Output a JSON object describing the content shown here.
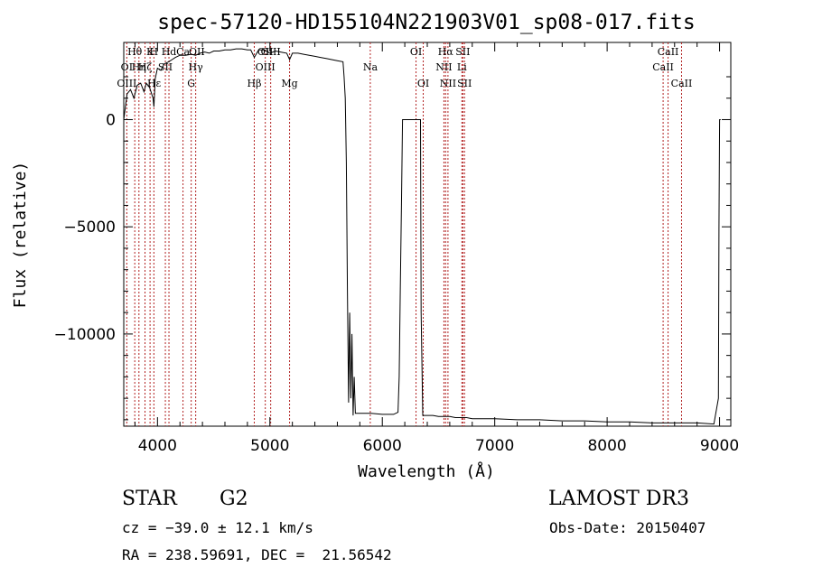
{
  "chart_data": {
    "type": "line",
    "title": "spec-57120-HD155104N221903V01_sp08-017.fits",
    "xlabel": "Wavelength (Å)",
    "ylabel": "Flux (relative)",
    "xlim": [
      3700,
      9100
    ],
    "ylim": [
      -14300,
      3600
    ],
    "x_ticks": [
      4000,
      5000,
      6000,
      7000,
      8000,
      9000
    ],
    "x_tick_labels": [
      "4000",
      "5000",
      "6000",
      "7000",
      "8000",
      "9000"
    ],
    "y_ticks": [
      0,
      -5000,
      -10000
    ],
    "y_tick_labels": [
      "0",
      "−5000",
      "−10000"
    ],
    "grid": false,
    "legend": "none",
    "line_color": "#000000",
    "marker_color": "#b22222",
    "series": [
      {
        "x": [
          3700,
          3710,
          3730,
          3760,
          3790,
          3820,
          3850,
          3880,
          3900,
          3930,
          3960,
          3968,
          3980,
          4000,
          4030,
          4060,
          4100,
          4130,
          4160,
          4200,
          4250,
          4300,
          4340,
          4380,
          4420,
          4460,
          4500,
          4550,
          4600,
          4650,
          4700,
          4750,
          4800,
          4830,
          4861,
          4900,
          4950,
          5000,
          5050,
          5100,
          5150,
          5175,
          5200,
          5250,
          5300,
          5350,
          5400,
          5450,
          5500,
          5550,
          5600,
          5650,
          5660,
          5670,
          5680,
          5690,
          5700,
          5710,
          5720,
          5730,
          5740,
          5750,
          5760,
          5800,
          5900,
          6000,
          6100,
          6140,
          6150,
          6160,
          6170,
          6180,
          6300,
          6340,
          6345,
          6360,
          6400,
          6450,
          6500,
          6550,
          6600,
          6650,
          6700,
          6750,
          6800,
          6900,
          7000,
          7200,
          7400,
          7600,
          7800,
          8000,
          8200,
          8400,
          8600,
          8800,
          8950,
          8990,
          8995,
          9000,
          9010
        ],
        "y": [
          0,
          400,
          1200,
          1400,
          1000,
          1600,
          1700,
          1300,
          1700,
          1500,
          1000,
          600,
          1900,
          2400,
          2300,
          2600,
          2700,
          2800,
          2900,
          3000,
          3000,
          3050,
          3000,
          3100,
          3150,
          3100,
          3200,
          3200,
          3250,
          3250,
          3300,
          3300,
          3250,
          3250,
          2900,
          3250,
          3250,
          3100,
          3200,
          3150,
          3100,
          2800,
          3100,
          3100,
          3050,
          3000,
          2950,
          2900,
          2850,
          2800,
          2750,
          2700,
          2000,
          1000,
          -2000,
          -8000,
          -13200,
          -9000,
          -13000,
          -10000,
          -13800,
          -12000,
          -13700,
          -13700,
          -13700,
          -13750,
          -13750,
          -13650,
          -12000,
          -8000,
          -4000,
          0,
          0,
          0,
          -9000,
          -13800,
          -13800,
          -13800,
          -13850,
          -13850,
          -13850,
          -13900,
          -13900,
          -13900,
          -13950,
          -13950,
          -13950,
          -14000,
          -14000,
          -14050,
          -14050,
          -14100,
          -14100,
          -14150,
          -14150,
          -14150,
          -14200,
          -13000,
          -5000,
          0,
          0
        ]
      }
    ],
    "line_labels": [
      {
        "label": "Hθ",
        "wavelength": 3798,
        "row": 1
      },
      {
        "label": "K",
        "wavelength": 3934,
        "row": 1
      },
      {
        "label": "H",
        "wavelength": 3968,
        "row": 1
      },
      {
        "label": "Hd",
        "wavelength": 4102,
        "row": 1
      },
      {
        "label": "Ca",
        "wavelength": 4227,
        "row": 1
      },
      {
        "label": "OII",
        "wavelength": 4350,
        "row": 1
      },
      {
        "label": "OII",
        "wavelength": 4959,
        "row": 1
      },
      {
        "label": "OIII",
        "wavelength": 5007,
        "row": 1
      },
      {
        "label": "OI",
        "wavelength": 6300,
        "row": 1
      },
      {
        "label": "Hα",
        "wavelength": 6563,
        "row": 1
      },
      {
        "label": "SII",
        "wavelength": 6716,
        "row": 1
      },
      {
        "label": "CaII",
        "wavelength": 8542,
        "row": 1
      },
      {
        "label": "OI",
        "wavelength": 3727,
        "row": 2
      },
      {
        "label": "Hη",
        "wavelength": 3835,
        "row": 2
      },
      {
        "label": "Hζ",
        "wavelength": 3889,
        "row": 2
      },
      {
        "label": "SII",
        "wavelength": 4070,
        "row": 2
      },
      {
        "label": "Hγ",
        "wavelength": 4340,
        "row": 2
      },
      {
        "label": "OIII",
        "wavelength": 4959,
        "row": 2
      },
      {
        "label": "Na",
        "wavelength": 5893,
        "row": 2
      },
      {
        "label": "NII",
        "wavelength": 6548,
        "row": 2
      },
      {
        "label": "Li",
        "wavelength": 6708,
        "row": 2
      },
      {
        "label": "CaII",
        "wavelength": 8498,
        "row": 2
      },
      {
        "label": "OIII",
        "wavelength": 3727,
        "row": 3
      },
      {
        "label": "Hε",
        "wavelength": 3970,
        "row": 3
      },
      {
        "label": "G",
        "wavelength": 4300,
        "row": 3
      },
      {
        "label": "Hβ",
        "wavelength": 4861,
        "row": 3
      },
      {
        "label": "Mg",
        "wavelength": 5175,
        "row": 3
      },
      {
        "label": "OI",
        "wavelength": 6364,
        "row": 3
      },
      {
        "label": "NII",
        "wavelength": 6584,
        "row": 3
      },
      {
        "label": "SII",
        "wavelength": 6731,
        "row": 3
      },
      {
        "label": "CaII",
        "wavelength": 8662,
        "row": 3
      }
    ],
    "marker_lines": [
      3727,
      3798,
      3835,
      3889,
      3934,
      3968,
      4070,
      4102,
      4227,
      4300,
      4340,
      4861,
      4959,
      5007,
      5175,
      5893,
      6300,
      6364,
      6548,
      6563,
      6584,
      6708,
      6716,
      6731,
      8498,
      8542,
      8662
    ]
  },
  "info": {
    "class_label": "STAR",
    "subclass": "G2",
    "survey": "LAMOST DR3",
    "redshift": "cz = −39.0 ± 12.1 km/s",
    "obs_date": "Obs-Date: 20150407",
    "coords": "RA = 238.59691, DEC =  21.56542"
  }
}
